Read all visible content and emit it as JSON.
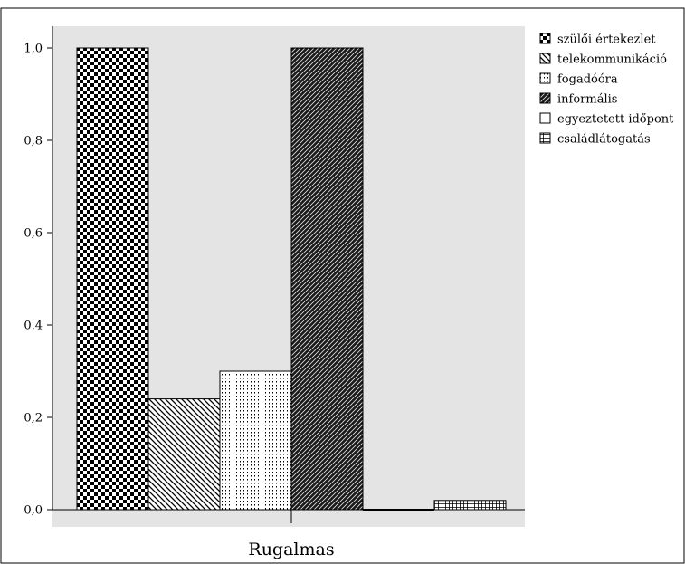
{
  "chart_data": {
    "type": "bar",
    "title": "",
    "xlabel": "",
    "ylabel": "",
    "categories": [
      "Rugalmas"
    ],
    "ylim": [
      0,
      1.0
    ],
    "yticks": [
      0.0,
      0.2,
      0.4,
      0.6,
      0.8,
      1.0
    ],
    "ytick_labels": [
      "0,0",
      "0,2",
      "0,4",
      "0,6",
      "0,8",
      "1,0"
    ],
    "grid": false,
    "legend_position": "right",
    "series": [
      {
        "name": "szülői értekezlet",
        "values": [
          1.0
        ],
        "pattern": "checker"
      },
      {
        "name": "telekommunikáció",
        "values": [
          0.24
        ],
        "pattern": "diag-light"
      },
      {
        "name": "fogadóóra",
        "values": [
          0.3
        ],
        "pattern": "dots"
      },
      {
        "name": "informális",
        "values": [
          1.0
        ],
        "pattern": "diag-dense"
      },
      {
        "name": "egyeztetett időpont",
        "values": [
          0.0
        ],
        "pattern": "white"
      },
      {
        "name": "családlátogatás",
        "values": [
          0.02
        ],
        "pattern": "grid"
      }
    ]
  },
  "colors": {
    "plot_background": "#e4e4e4",
    "bar_stroke": "#000000"
  }
}
